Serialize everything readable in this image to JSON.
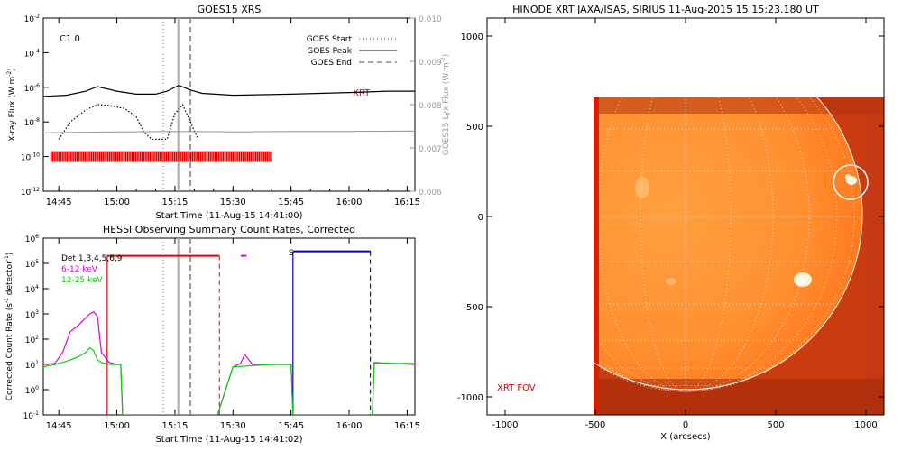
{
  "panels": {
    "goes": {
      "title": "GOES15 XRS",
      "xlabel": "Start Time (11-Aug-15 14:41:00)",
      "ylabel": "X-ray Flux (W m",
      "ylabel_sup": "-2",
      "ylabel_end": ")",
      "right_label": "GOES15 Lyx Flux (W m",
      "right_label_sup": "-2",
      "right_label_end": ")",
      "class_label": "C1.0",
      "xrt_label": "XRT",
      "x_ticks": [
        "14:45",
        "15:00",
        "15:15",
        "15:30",
        "15:45",
        "16:00",
        "16:15"
      ],
      "y_ticks": [
        {
          "base": "10",
          "exp": "-2"
        },
        {
          "base": "10",
          "exp": "-4"
        },
        {
          "base": "10",
          "exp": "-6"
        },
        {
          "base": "10",
          "exp": "-8"
        },
        {
          "base": "10",
          "exp": "-10"
        },
        {
          "base": "10",
          "exp": "-12"
        }
      ],
      "right_ticks": [
        "0.010",
        "0.009",
        "0.008",
        "0.007",
        "0.006"
      ],
      "legend": [
        {
          "label": "GOES Start",
          "style": "dotted"
        },
        {
          "label": "GOES Peak",
          "style": "solid"
        },
        {
          "label": "GOES End",
          "style": "dashed"
        }
      ]
    },
    "hessi": {
      "title": "HESSI Observing Summary Count Rates, Corrected",
      "xlabel": "Start Time (11-Aug-15 14:41:02)",
      "ylabel": "Corrected Count Rate (s",
      "ylabel_sup": "-1",
      "ylabel_end": " detector",
      "ylabel_sup2": "-1",
      "ylabel_end2": ")",
      "legend": [
        {
          "label": "Det 1,3,4,5,6,9",
          "color": "#000000"
        },
        {
          "label": "6-12 keV",
          "color": "#e000e0"
        },
        {
          "label": "12-25 keV",
          "color": "#00d000"
        }
      ],
      "s_label": "S",
      "x_ticks": [
        "14:45",
        "15:00",
        "15:15",
        "15:30",
        "15:45",
        "16:00",
        "16:15"
      ],
      "y_ticks": [
        {
          "base": "10",
          "exp": "6"
        },
        {
          "base": "10",
          "exp": "5"
        },
        {
          "base": "10",
          "exp": "4"
        },
        {
          "base": "10",
          "exp": "3"
        },
        {
          "base": "10",
          "exp": "2"
        },
        {
          "base": "10",
          "exp": "1"
        },
        {
          "base": "10",
          "exp": "0"
        },
        {
          "base": "10",
          "exp": "-1"
        }
      ]
    },
    "xrt": {
      "title": "HINODE XRT JAXA/ISAS, SIRIUS 11-Aug-2015 15:15:23.180 UT",
      "xlabel": "X (arcsecs)",
      "fov_label": "XRT FOV",
      "x_ticks": [
        "-1000",
        "-500",
        "0",
        "500",
        "1000"
      ],
      "y_ticks": [
        "1000",
        "500",
        "0",
        "-500",
        "-1000"
      ]
    }
  },
  "chart_data": [
    {
      "type": "line",
      "title": "GOES15 XRS",
      "xlabel": "Start Time (11-Aug-15 14:41:00)",
      "ylabel": "X-ray Flux (W m^-2)",
      "y2label": "GOES15 Lyx Flux (W m^-2)",
      "yscale": "log",
      "ylim": [
        1e-12,
        0.01
      ],
      "y2lim": [
        0.006,
        0.01
      ],
      "xlim": [
        "14:41",
        "16:17"
      ],
      "series": [
        {
          "name": "long",
          "color": "#000000",
          "x": [
            "14:41",
            "14:47",
            "14:52",
            "14:55",
            "15:00",
            "15:05",
            "15:10",
            "15:13",
            "15:16",
            "15:19",
            "15:22",
            "15:30",
            "15:45",
            "16:00",
            "16:10",
            "16:17"
          ],
          "y": [
            3e-07,
            3.5e-07,
            6e-07,
            1.1e-06,
            6e-07,
            4e-07,
            4e-07,
            6e-07,
            1.3e-06,
            7e-07,
            4.5e-07,
            3.5e-07,
            4e-07,
            5e-07,
            6e-07,
            6e-07
          ]
        },
        {
          "name": "short",
          "color": "#000000",
          "style": "dotted",
          "x": [
            "14:45",
            "14:48",
            "14:52",
            "14:55",
            "14:58",
            "15:02",
            "15:05",
            "15:07",
            "15:09",
            "15:13",
            "15:15",
            "15:17",
            "15:19",
            "15:21"
          ],
          "y": [
            1e-09,
            1e-08,
            5e-08,
            1e-07,
            9e-08,
            6e-08,
            2e-08,
            2.5e-09,
            1e-09,
            1e-09,
            3e-08,
            1e-07,
            1e-08,
            1e-09
          ]
        },
        {
          "name": "lyman",
          "color": "#909090",
          "axis": "right",
          "x": [
            "14:41",
            "15:00",
            "15:15",
            "15:30",
            "15:45",
            "16:00",
            "16:17"
          ],
          "y": [
            0.00735,
            0.00737,
            0.00738,
            0.00737,
            0.00738,
            0.00738,
            0.00739
          ]
        }
      ],
      "markers": {
        "goes_start": "15:12",
        "goes_peak": "15:16",
        "goes_end": "15:19"
      },
      "xrt_coverage": {
        "start": "14:43",
        "end": "15:40",
        "level": 1e-10
      }
    },
    {
      "type": "line",
      "title": "HESSI Observing Summary Count Rates, Corrected",
      "xlabel": "Start Time (11-Aug-15 14:41:02)",
      "ylabel": "Corrected Count Rate (s^-1 detector^-1)",
      "yscale": "log",
      "ylim": [
        0.1,
        1000000.0
      ],
      "xlim": [
        "14:41",
        "16:17"
      ],
      "series": [
        {
          "name": "6-12 keV",
          "color": "#e000e0",
          "x": [
            "14:41",
            "14:44",
            "14:46",
            "14:48",
            "14:50",
            "14:51",
            "14:52",
            "14:53",
            "14:54",
            "14:55",
            "14:56",
            "14:58",
            "15:00",
            "15:01",
            "15:01.5",
            "15:26",
            "15:30",
            "15:32",
            "15:33",
            "15:35",
            "15:40",
            "15:45",
            "15:45.5",
            "16:06",
            "16:06.5",
            "16:11",
            "16:17"
          ],
          "y": [
            10,
            11,
            30,
            200,
            350,
            500,
            700,
            1000,
            1200,
            800,
            30,
            12,
            10,
            10,
            0.1,
            0.1,
            8,
            11,
            25,
            10,
            10,
            10,
            0.1,
            0.1,
            11,
            11,
            10
          ]
        },
        {
          "name": "12-25 keV",
          "color": "#00d000",
          "x": [
            "14:41",
            "14:44",
            "14:46",
            "14:48",
            "14:50",
            "14:52",
            "14:53",
            "14:54",
            "14:55",
            "14:56",
            "14:58",
            "15:00",
            "15:01",
            "15:01.5",
            "15:26",
            "15:30",
            "15:35",
            "15:40",
            "15:45",
            "15:45.5",
            "16:06",
            "16:06.5",
            "16:11",
            "16:17"
          ],
          "y": [
            8,
            10,
            12,
            15,
            20,
            30,
            45,
            35,
            15,
            12,
            10,
            10,
            10,
            0.1,
            0.1,
            8,
            9,
            10,
            10,
            0.1,
            0.1,
            12,
            11,
            11
          ]
        }
      ],
      "attenuator_segments": [
        {
          "start": "14:57.5",
          "end": "15:26.5",
          "value": 200000,
          "color": "#e00000"
        },
        {
          "start": "15:45.5",
          "end": "16:05.5",
          "value": 300000,
          "color": "#0000c0",
          "label": "S"
        }
      ],
      "markers": {
        "goes_start": "15:12",
        "goes_peak": "15:16",
        "goes_end": "15:19"
      }
    }
  ],
  "xrt_image": {
    "xlim": [
      -1100,
      1100
    ],
    "ylim": [
      -1100,
      1100
    ],
    "solar_radius_arcsec": 950,
    "fov": {
      "x": [
        -500,
        1080
      ],
      "y": [
        -1100,
        660
      ]
    },
    "flare_circle": {
      "x": 920,
      "y": 190
    },
    "bright_regions": [
      {
        "x": 920,
        "y": 190
      },
      {
        "x": 640,
        "y": -350
      }
    ]
  }
}
